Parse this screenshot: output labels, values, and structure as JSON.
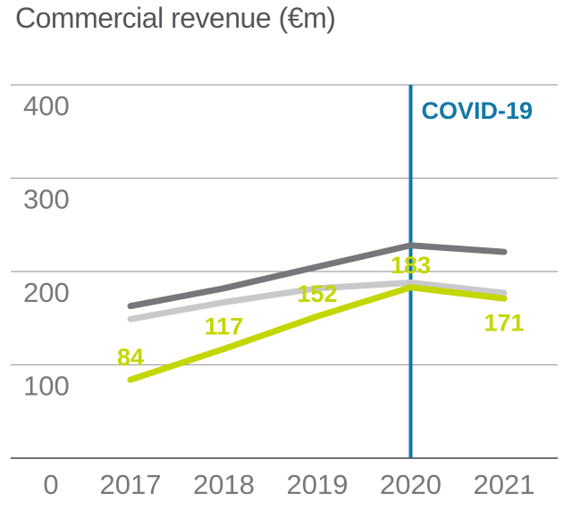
{
  "chart_data": {
    "type": "line",
    "title": "Commercial revenue (€m)",
    "x_axis": {
      "origin_label": "0",
      "categories": [
        "2017",
        "2018",
        "2019",
        "2020",
        "2021"
      ]
    },
    "y_axis": {
      "ylim": [
        0,
        400
      ],
      "ticks": [
        400,
        300,
        200,
        100
      ],
      "grid": "horizontal"
    },
    "series": [
      {
        "name": "dark-gray-line",
        "color": "#76777a",
        "values": [
          163,
          182,
          205,
          228,
          221
        ],
        "labeled": false
      },
      {
        "name": "light-gray-line",
        "color": "#c8c9cb",
        "values": [
          149,
          167,
          182,
          188,
          177
        ],
        "labeled": false
      },
      {
        "name": "commercial-revenue-line",
        "color": "#c3d600",
        "values": [
          84,
          117,
          152,
          183,
          171
        ],
        "labeled": true,
        "data_labels": [
          "84",
          "117",
          "152",
          "183",
          "171"
        ],
        "data_label_color": "#c3d600"
      }
    ],
    "annotation": {
      "text": "COVID-19",
      "at_category": "2020",
      "color": "#1177a8"
    },
    "legend": "none"
  },
  "styles": {
    "title_color": "#55565a",
    "tick_label_color": "#77787b",
    "gridline_color": "#a2a3a6",
    "axis_line_color": "#6f7074"
  }
}
